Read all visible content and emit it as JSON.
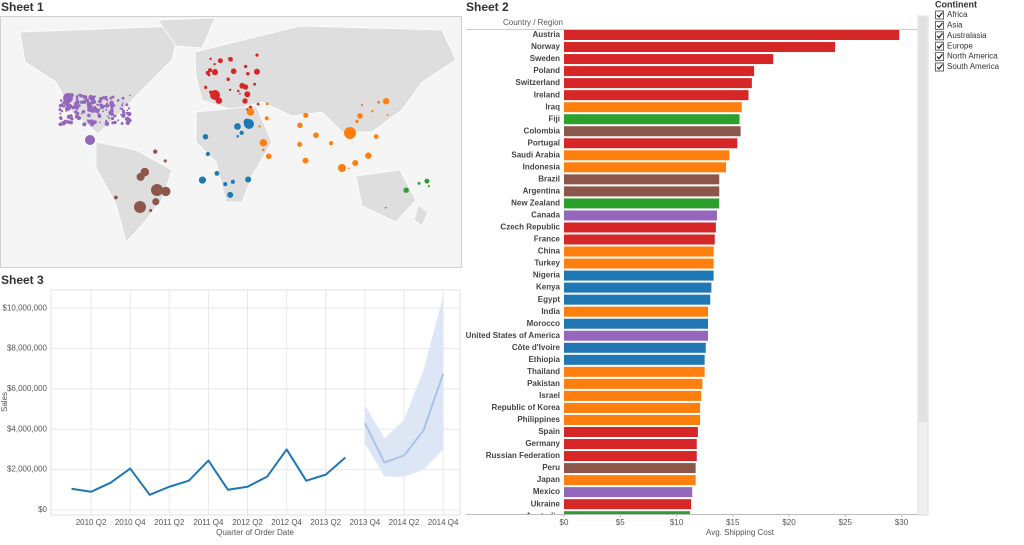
{
  "dashboard": {
    "sheet1_title": "Sheet 1",
    "sheet2_title": "Sheet 2",
    "sheet3_title": "Sheet 3"
  },
  "filter": {
    "title": "Continent",
    "items": [
      "Africa",
      "Asia",
      "Australasia",
      "Europe",
      "North America",
      "South America"
    ]
  },
  "chart_data": [
    {
      "type": "bar",
      "orientation": "horizontal",
      "column_header": "Country / Region",
      "x_label": "Avg. Shipping Cost",
      "categories": [
        "Austria",
        "Norway",
        "Sweden",
        "Poland",
        "Switzerland",
        "Ireland",
        "Iraq",
        "Fiji",
        "Colombia",
        "Portugal",
        "Saudi Arabia",
        "Indonesia",
        "Brazil",
        "Argentina",
        "New Zealand",
        "Canada",
        "Czech Republic",
        "France",
        "China",
        "Turkey",
        "Nigeria",
        "Kenya",
        "Egypt",
        "India",
        "Morocco",
        "United States of America",
        "Côte d'Ivoire",
        "Ethiopia",
        "Thailand",
        "Pakistan",
        "Israel",
        "Republic of Korea",
        "Philippines",
        "Spain",
        "Germany",
        "Russian Federation",
        "Peru",
        "Japan",
        "Mexico",
        "Ukraine",
        "Australia"
      ],
      "values": [
        29.8,
        24.1,
        18.6,
        16.9,
        16.7,
        16.4,
        15.8,
        15.6,
        15.7,
        15.4,
        14.7,
        14.4,
        13.8,
        13.8,
        13.8,
        13.6,
        13.5,
        13.4,
        13.3,
        13.3,
        13.3,
        13.1,
        13.0,
        12.8,
        12.8,
        12.8,
        12.6,
        12.5,
        12.5,
        12.3,
        12.2,
        12.1,
        12.1,
        11.9,
        11.8,
        11.8,
        11.7,
        11.7,
        11.4,
        11.3,
        11.2
      ],
      "colors": [
        "#d62728",
        "#d62728",
        "#d62728",
        "#d62728",
        "#d62728",
        "#d62728",
        "#ff7f0e",
        "#2ca02c",
        "#8c564b",
        "#d62728",
        "#ff7f0e",
        "#ff7f0e",
        "#8c564b",
        "#8c564b",
        "#2ca02c",
        "#9467bd",
        "#d62728",
        "#d62728",
        "#ff7f0e",
        "#ff7f0e",
        "#1f77b4",
        "#1f77b4",
        "#1f77b4",
        "#ff7f0e",
        "#1f77b4",
        "#9467bd",
        "#1f77b4",
        "#1f77b4",
        "#ff7f0e",
        "#ff7f0e",
        "#ff7f0e",
        "#ff7f0e",
        "#ff7f0e",
        "#d62728",
        "#d62728",
        "#d62728",
        "#8c564b",
        "#ff7f0e",
        "#9467bd",
        "#d62728",
        "#2ca02c"
      ],
      "xlim": [
        0,
        31.2
      ],
      "xticks": [
        {
          "value": 0,
          "label": "$0"
        },
        {
          "value": 5,
          "label": "$5"
        },
        {
          "value": 10,
          "label": "$10"
        },
        {
          "value": 15,
          "label": "$15"
        },
        {
          "value": 20,
          "label": "$20"
        },
        {
          "value": 25,
          "label": "$25"
        },
        {
          "value": 30,
          "label": "$30"
        }
      ]
    },
    {
      "type": "line",
      "x_label": "Quarter of Order Date",
      "y_label": "Sales",
      "categories": [
        null,
        "2010 Q2",
        null,
        "2010 Q4",
        null,
        "2011 Q2",
        null,
        "2011 Q4",
        null,
        "2012 Q2",
        null,
        "2012 Q4",
        null,
        "2013 Q2",
        null,
        "2013 Q4",
        null,
        "2014 Q2",
        null,
        "2014 Q4"
      ],
      "series": [
        {
          "color": "#1f77b4",
          "values": [
            1050000,
            900000,
            1350000,
            2050000,
            750000,
            1150000,
            1450000,
            2450000,
            1000000,
            1150000,
            1650000,
            3000000,
            1450000,
            1750000,
            2600000,
            null,
            null,
            null,
            null,
            null
          ]
        },
        {
          "color": "#a9c4e6",
          "values": [
            null,
            null,
            null,
            null,
            null,
            null,
            null,
            null,
            null,
            null,
            null,
            null,
            null,
            null,
            null,
            4300000,
            2350000,
            2700000,
            3950000,
            6750000
          ],
          "band_color": "#dde6f5",
          "lower": [
            null,
            null,
            null,
            null,
            null,
            null,
            null,
            null,
            null,
            null,
            null,
            null,
            null,
            null,
            null,
            3300000,
            1650000,
            1650000,
            2000000,
            3000000
          ],
          "upper": [
            null,
            null,
            null,
            null,
            null,
            null,
            null,
            null,
            null,
            null,
            null,
            null,
            null,
            null,
            null,
            5200000,
            3550000,
            4450000,
            6950000,
            10600000
          ]
        }
      ],
      "ylim": [
        -250000,
        10900000
      ],
      "yticks": [
        {
          "value": 0,
          "label": "$0"
        },
        {
          "value": 2000000,
          "label": "$2,000,000"
        },
        {
          "value": 4000000,
          "label": "$4,000,000"
        },
        {
          "value": 6000000,
          "label": "$6,000,000"
        },
        {
          "value": 8000000,
          "label": "$8,000,000"
        },
        {
          "value": 10000000,
          "label": "$10,000,000"
        }
      ]
    }
  ]
}
